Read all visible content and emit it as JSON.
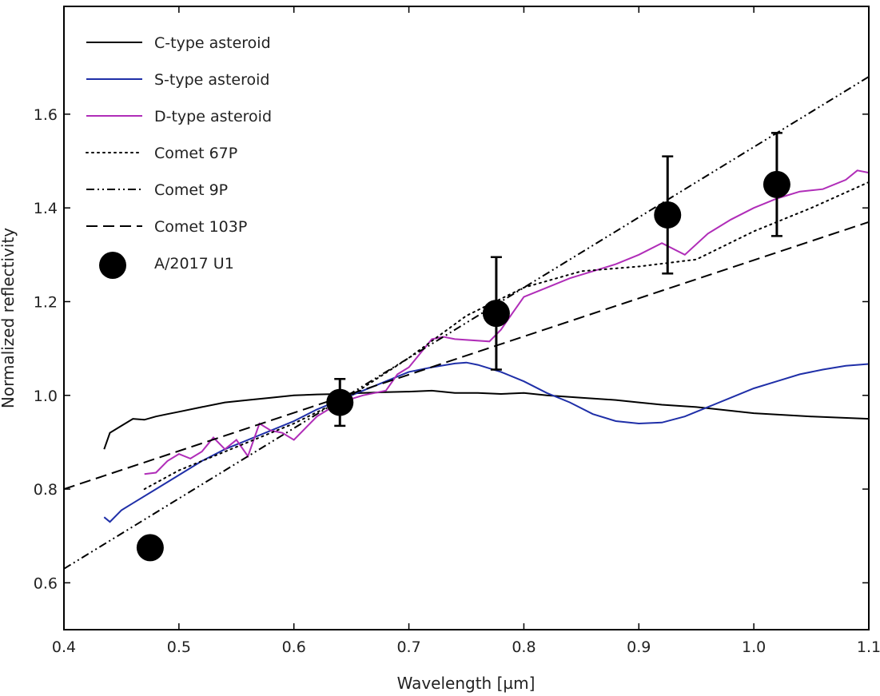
{
  "chart_data": {
    "type": "line",
    "title": "",
    "xlabel": "Wavelength [µm]",
    "ylabel": "Normalized reflectivity",
    "xlim": [
      0.4,
      1.1
    ],
    "ylim": [
      0.5,
      1.83
    ],
    "xticks": [
      0.4,
      0.5,
      0.6,
      0.7,
      0.8,
      0.9,
      1.0,
      1.1
    ],
    "xtick_labels": [
      "0.4",
      "0.5",
      "0.6",
      "0.7",
      "0.8",
      "0.9",
      "1.0",
      "1.1"
    ],
    "yticks": [
      0.6,
      0.8,
      1.0,
      1.2,
      1.4,
      1.6
    ],
    "ytick_labels": [
      "0.6",
      "0.8",
      "1.0",
      "1.2",
      "1.4",
      "1.6"
    ],
    "grid": false,
    "legend_position": "top-left",
    "series": [
      {
        "name": "C-type asteroid",
        "kind": "line",
        "color": "#000000",
        "dash": "solid",
        "x": [
          0.435,
          0.44,
          0.45,
          0.46,
          0.47,
          0.48,
          0.49,
          0.5,
          0.52,
          0.54,
          0.56,
          0.58,
          0.6,
          0.62,
          0.64,
          0.66,
          0.68,
          0.7,
          0.72,
          0.74,
          0.76,
          0.78,
          0.8,
          0.82,
          0.85,
          0.88,
          0.9,
          0.92,
          0.95,
          1.0,
          1.05,
          1.1
        ],
        "y": [
          0.885,
          0.92,
          0.935,
          0.95,
          0.948,
          0.955,
          0.96,
          0.965,
          0.975,
          0.985,
          0.99,
          0.995,
          1.0,
          1.002,
          1.003,
          1.005,
          1.007,
          1.008,
          1.01,
          1.005,
          1.005,
          1.003,
          1.005,
          1.0,
          0.995,
          0.99,
          0.985,
          0.98,
          0.975,
          0.962,
          0.955,
          0.95
        ]
      },
      {
        "name": "S-type asteroid",
        "kind": "line",
        "color": "#1f2fa8",
        "dash": "solid",
        "x": [
          0.435,
          0.44,
          0.45,
          0.46,
          0.48,
          0.5,
          0.52,
          0.54,
          0.56,
          0.58,
          0.6,
          0.62,
          0.64,
          0.66,
          0.68,
          0.7,
          0.72,
          0.74,
          0.75,
          0.76,
          0.78,
          0.8,
          0.82,
          0.84,
          0.86,
          0.88,
          0.9,
          0.92,
          0.94,
          0.96,
          0.98,
          1.0,
          1.02,
          1.04,
          1.06,
          1.08,
          1.1
        ],
        "y": [
          0.74,
          0.73,
          0.755,
          0.77,
          0.8,
          0.83,
          0.86,
          0.885,
          0.905,
          0.925,
          0.945,
          0.97,
          0.99,
          1.01,
          1.03,
          1.05,
          1.06,
          1.068,
          1.07,
          1.065,
          1.05,
          1.03,
          1.005,
          0.985,
          0.96,
          0.945,
          0.94,
          0.942,
          0.955,
          0.975,
          0.995,
          1.015,
          1.03,
          1.045,
          1.055,
          1.063,
          1.067
        ]
      },
      {
        "name": "D-type asteroid",
        "kind": "line",
        "color": "#b02db8",
        "dash": "solid",
        "x": [
          0.47,
          0.48,
          0.49,
          0.5,
          0.51,
          0.52,
          0.53,
          0.54,
          0.55,
          0.56,
          0.57,
          0.58,
          0.59,
          0.6,
          0.62,
          0.64,
          0.66,
          0.68,
          0.69,
          0.7,
          0.71,
          0.72,
          0.73,
          0.74,
          0.77,
          0.78,
          0.79,
          0.8,
          0.82,
          0.84,
          0.86,
          0.88,
          0.9,
          0.92,
          0.94,
          0.96,
          0.98,
          1.0,
          1.02,
          1.04,
          1.06,
          1.08,
          1.09,
          1.1
        ],
        "y": [
          0.832,
          0.835,
          0.86,
          0.875,
          0.865,
          0.88,
          0.91,
          0.885,
          0.905,
          0.87,
          0.94,
          0.925,
          0.92,
          0.905,
          0.955,
          0.985,
          1.0,
          1.01,
          1.045,
          1.06,
          1.09,
          1.12,
          1.125,
          1.12,
          1.115,
          1.14,
          1.175,
          1.21,
          1.23,
          1.25,
          1.265,
          1.28,
          1.3,
          1.325,
          1.3,
          1.345,
          1.375,
          1.4,
          1.42,
          1.435,
          1.44,
          1.46,
          1.48,
          1.475
        ]
      },
      {
        "name": "Comet 67P",
        "kind": "line",
        "color": "#000000",
        "dash": "dotted",
        "x": [
          0.47,
          0.5,
          0.55,
          0.6,
          0.65,
          0.7,
          0.75,
          0.8,
          0.85,
          0.9,
          0.95,
          1.0,
          1.05,
          1.1
        ],
        "y": [
          0.8,
          0.84,
          0.89,
          0.94,
          1.0,
          1.08,
          1.17,
          1.23,
          1.265,
          1.275,
          1.29,
          1.35,
          1.4,
          1.455
        ]
      },
      {
        "name": "Comet 9P",
        "kind": "line",
        "color": "#000000",
        "dash": "dashdotdot",
        "x": [
          0.4,
          1.1
        ],
        "y": [
          0.63,
          1.68
        ]
      },
      {
        "name": "Comet 103P",
        "kind": "line",
        "color": "#000000",
        "dash": "dashed",
        "x": [
          0.4,
          1.1
        ],
        "y": [
          0.8,
          1.37
        ]
      },
      {
        "name": "A/2017 U1",
        "kind": "scatter",
        "color": "#000000",
        "x": [
          0.475,
          0.64,
          0.776,
          0.925,
          1.02
        ],
        "y": [
          0.675,
          0.985,
          1.175,
          1.385,
          1.45
        ],
        "yerr": [
          0,
          0.05,
          0.12,
          0.125,
          0.11
        ]
      }
    ]
  }
}
